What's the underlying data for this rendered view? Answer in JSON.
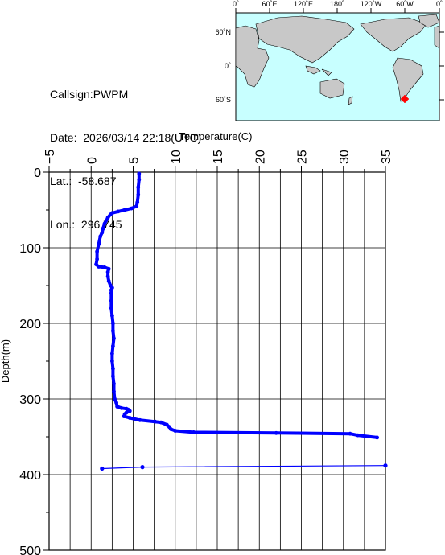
{
  "info": {
    "callsign": "Callsign:PWPM",
    "date": "Date:  2026/03/14 22:18(UTC)",
    "lat": "Lat.:  -58.687",
    "lon": "Lon.:  296.745"
  },
  "map": {
    "top_labels": [
      "0˚",
      "60˚E",
      "120˚E",
      "180˚",
      "120˚W",
      "60˚W",
      "0˚"
    ],
    "side_labels": [
      "60˚N",
      "0˚",
      "60˚S"
    ],
    "ocean_color": "#c8ffff",
    "land_color": "#c8c8c8",
    "marker_color": "#ff0000"
  },
  "chart_data": {
    "type": "line",
    "title": "",
    "xlabel": "Temperature(C)",
    "ylabel": "Depth(m)",
    "xlim": [
      -5,
      35
    ],
    "ylim": [
      500,
      0
    ],
    "x_ticks": [
      "−5",
      "0",
      "5",
      "10",
      "15",
      "20",
      "25",
      "30",
      "35"
    ],
    "y_ticks": [
      "0",
      "100",
      "200",
      "300",
      "400",
      "500"
    ],
    "grid": true,
    "line_color": "#0000ff",
    "series": [
      {
        "style": "profile",
        "points": [
          [
            5.7,
            2
          ],
          [
            5.7,
            10
          ],
          [
            5.6,
            20
          ],
          [
            5.6,
            30
          ],
          [
            5.5,
            40
          ],
          [
            5.4,
            45
          ],
          [
            4.8,
            48
          ],
          [
            4.0,
            50
          ],
          [
            3.2,
            52
          ],
          [
            2.5,
            54
          ],
          [
            2.3,
            56
          ],
          [
            2.0,
            60
          ],
          [
            1.6,
            68
          ],
          [
            1.4,
            75
          ],
          [
            1.3,
            80
          ],
          [
            1.1,
            85
          ],
          [
            0.9,
            95
          ],
          [
            0.7,
            105
          ],
          [
            0.7,
            115
          ],
          [
            0.6,
            122
          ],
          [
            0.9,
            125
          ],
          [
            1.6,
            126
          ],
          [
            2.1,
            128
          ],
          [
            2.0,
            132
          ],
          [
            2.0,
            138
          ],
          [
            2.1,
            144
          ],
          [
            2.3,
            150
          ],
          [
            2.5,
            153
          ],
          [
            2.4,
            156
          ],
          [
            2.4,
            160
          ],
          [
            2.4,
            170
          ],
          [
            2.4,
            180
          ],
          [
            2.5,
            190
          ],
          [
            2.6,
            200
          ],
          [
            2.6,
            210
          ],
          [
            2.7,
            220
          ],
          [
            2.6,
            230
          ],
          [
            2.5,
            240
          ],
          [
            2.5,
            250
          ],
          [
            2.6,
            260
          ],
          [
            2.6,
            270
          ],
          [
            2.7,
            280
          ],
          [
            2.7,
            290
          ],
          [
            2.8,
            300
          ],
          [
            3.0,
            305
          ],
          [
            3.1,
            310
          ],
          [
            3.6,
            312
          ],
          [
            4.2,
            313
          ],
          [
            4.4,
            314
          ],
          [
            4.6,
            316
          ],
          [
            4.2,
            318
          ],
          [
            4.0,
            320
          ],
          [
            3.9,
            323
          ],
          [
            4.6,
            325
          ],
          [
            5.8,
            328
          ],
          [
            7.6,
            330
          ],
          [
            8.3,
            331
          ],
          [
            9.0,
            334
          ],
          [
            9.3,
            337
          ],
          [
            9.5,
            340
          ],
          [
            10.0,
            342
          ],
          [
            12.2,
            344
          ],
          [
            22.0,
            345
          ],
          [
            30.8,
            346
          ],
          [
            31.7,
            348
          ],
          [
            34.0,
            351
          ]
        ]
      },
      {
        "style": "spike",
        "points": [
          [
            1.3,
            392
          ],
          [
            6.1,
            390
          ],
          [
            35.0,
            388
          ]
        ]
      }
    ]
  }
}
